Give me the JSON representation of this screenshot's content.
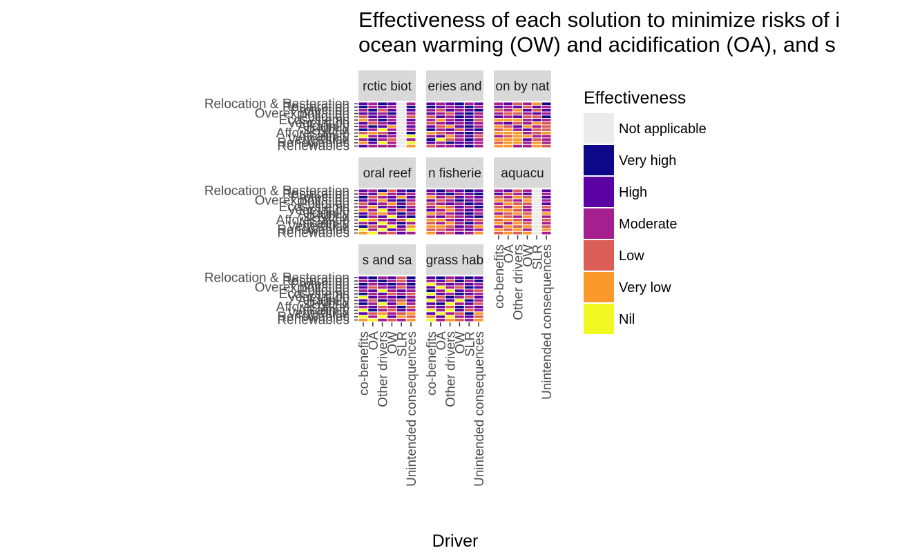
{
  "title": {
    "line1": "Effectiveness of each solution to minimize risks of i",
    "line2": "ocean warming (OW) and acidification (OA), and s"
  },
  "chart_data": {
    "type": "heatmap",
    "xlabel": "Driver",
    "ylabel": "",
    "x_categories": [
      "co-benefits",
      "OA",
      "Other drivers",
      "OW",
      "SLR",
      "Unintended consequences"
    ],
    "y_tick_labels": [
      "Relocation & Restoration",
      "Restoration",
      "Protection",
      "Overexploitation",
      "Pollution",
      "Ecosystems",
      "Vegetation",
      "Alkalinity",
      "Hybrid",
      "Afforestation",
      "Alkalinity",
      "Vegetation",
      "Renewables",
      "Renewables"
    ],
    "facets": [
      {
        "label": "rctic biot"
      },
      {
        "label": "eries and"
      },
      {
        "label": "on by nat"
      },
      {
        "label": "oral reef"
      },
      {
        "label": "n fisherie"
      },
      {
        "label": "aquacu"
      },
      {
        "label": "s and sa"
      },
      {
        "label": "grass hab"
      }
    ],
    "legend": {
      "title": "Effectiveness",
      "position": "right",
      "items": [
        {
          "label": "Not applicable",
          "color": "#EBEBEB"
        },
        {
          "label": "Very high",
          "color": "#0D0887"
        },
        {
          "label": "High",
          "color": "#5B02A3"
        },
        {
          "label": "Moderate",
          "color": "#A51F8F"
        },
        {
          "label": "Low",
          "color": "#DB5D57"
        },
        {
          "label": "Very low",
          "color": "#FB9A2B"
        },
        {
          "label": "Nil",
          "color": "#F0F921"
        }
      ]
    },
    "cell_levels": [
      [
        [
          2,
          3,
          1,
          2,
          0,
          3
        ],
        [
          1,
          3,
          2,
          3,
          0,
          1
        ],
        [
          3,
          1,
          4,
          2,
          0,
          2
        ],
        [
          2,
          2,
          3,
          1,
          0,
          3
        ],
        [
          4,
          2,
          2,
          3,
          0,
          4
        ],
        [
          5,
          3,
          1,
          3,
          0,
          2
        ],
        [
          2,
          4,
          3,
          2,
          0,
          3
        ],
        [
          3,
          1,
          2,
          5,
          0,
          2
        ],
        [
          1,
          3,
          6,
          3,
          0,
          3
        ],
        [
          4,
          5,
          4,
          2,
          0,
          1
        ],
        [
          6,
          3,
          2,
          3,
          0,
          6
        ],
        [
          3,
          1,
          3,
          4,
          0,
          3
        ],
        [
          5,
          2,
          6,
          3,
          0,
          6
        ],
        [
          2,
          3,
          3,
          3,
          0,
          5
        ]
      ],
      [
        [
          2,
          3,
          2,
          1,
          3,
          2
        ],
        [
          1,
          2,
          3,
          2,
          1,
          3
        ],
        [
          3,
          4,
          2,
          3,
          2,
          1
        ],
        [
          2,
          3,
          4,
          2,
          1,
          3
        ],
        [
          4,
          2,
          3,
          1,
          2,
          3
        ],
        [
          3,
          5,
          3,
          2,
          1,
          4
        ],
        [
          4,
          3,
          2,
          3,
          2,
          3
        ],
        [
          2,
          4,
          5,
          2,
          1,
          3
        ],
        [
          1,
          3,
          2,
          4,
          2,
          1
        ],
        [
          5,
          4,
          3,
          2,
          1,
          3
        ],
        [
          3,
          2,
          5,
          3,
          2,
          4
        ],
        [
          1,
          6,
          4,
          3,
          1,
          3
        ],
        [
          2,
          3,
          1,
          2,
          2,
          3
        ],
        [
          4,
          3,
          3,
          2,
          1,
          3
        ]
      ],
      [
        [
          3,
          2,
          4,
          3,
          5,
          1
        ],
        [
          2,
          3,
          2,
          4,
          2,
          3
        ],
        [
          4,
          3,
          5,
          2,
          4,
          2
        ],
        [
          3,
          4,
          4,
          3,
          2,
          3
        ],
        [
          2,
          3,
          2,
          4,
          4,
          1
        ],
        [
          5,
          5,
          5,
          3,
          2,
          3
        ],
        [
          3,
          2,
          4,
          3,
          5,
          4
        ],
        [
          5,
          4,
          2,
          5,
          3,
          4
        ],
        [
          4,
          5,
          3,
          2,
          4,
          4
        ],
        [
          5,
          5,
          5,
          3,
          4,
          5
        ],
        [
          3,
          4,
          5,
          5,
          3,
          3
        ],
        [
          5,
          5,
          5,
          2,
          4,
          3
        ],
        [
          4,
          5,
          5,
          3,
          5,
          3
        ],
        [
          5,
          5,
          3,
          3,
          5,
          4
        ]
      ],
      [
        [
          2,
          3,
          1,
          4,
          2,
          1
        ],
        [
          3,
          2,
          5,
          3,
          2,
          3
        ],
        [
          1,
          4,
          3,
          2,
          5,
          2
        ],
        [
          2,
          3,
          5,
          2,
          1,
          3
        ],
        [
          4,
          2,
          3,
          5,
          2,
          4
        ],
        [
          3,
          5,
          2,
          3,
          1,
          3
        ],
        [
          5,
          3,
          6,
          2,
          4,
          2
        ],
        [
          2,
          4,
          5,
          3,
          1,
          3
        ],
        [
          1,
          3,
          2,
          6,
          2,
          1
        ],
        [
          6,
          5,
          3,
          2,
          4,
          6
        ],
        [
          3,
          2,
          6,
          3,
          1,
          3
        ],
        [
          1,
          4,
          3,
          6,
          2,
          5
        ],
        [
          6,
          3,
          6,
          2,
          3,
          6
        ],
        [
          5,
          6,
          3,
          4,
          2,
          3
        ]
      ],
      [
        [
          2,
          1,
          3,
          2,
          1,
          2
        ],
        [
          3,
          2,
          1,
          3,
          2,
          1
        ],
        [
          5,
          3,
          4,
          2,
          3,
          2
        ],
        [
          2,
          4,
          3,
          1,
          2,
          3
        ],
        [
          4,
          3,
          2,
          3,
          1,
          2
        ],
        [
          3,
          5,
          4,
          2,
          3,
          1
        ],
        [
          2,
          3,
          5,
          3,
          2,
          3
        ],
        [
          5,
          4,
          3,
          2,
          1,
          3
        ],
        [
          3,
          2,
          4,
          3,
          2,
          1
        ],
        [
          5,
          5,
          3,
          2,
          3,
          4
        ],
        [
          4,
          3,
          5,
          3,
          1,
          3
        ],
        [
          5,
          5,
          4,
          2,
          3,
          5
        ],
        [
          4,
          4,
          3,
          3,
          2,
          3
        ],
        [
          5,
          3,
          4,
          2,
          3,
          5
        ]
      ],
      [
        [
          3,
          2,
          4,
          3,
          0,
          2
        ],
        [
          2,
          4,
          3,
          2,
          0,
          3
        ],
        [
          4,
          3,
          5,
          4,
          0,
          2
        ],
        [
          5,
          4,
          3,
          5,
          0,
          3
        ],
        [
          3,
          5,
          4,
          4,
          0,
          2
        ],
        [
          4,
          3,
          5,
          3,
          0,
          4
        ],
        [
          5,
          5,
          4,
          3,
          0,
          3
        ],
        [
          3,
          4,
          5,
          4,
          0,
          5
        ],
        [
          5,
          4,
          3,
          5,
          0,
          3
        ],
        [
          4,
          5,
          4,
          3,
          0,
          4
        ],
        [
          5,
          3,
          5,
          4,
          0,
          3
        ],
        [
          3,
          5,
          4,
          5,
          0,
          4
        ],
        [
          5,
          4,
          5,
          3,
          0,
          5
        ],
        [
          4,
          5,
          4,
          5,
          0,
          3
        ]
      ],
      [
        [
          2,
          1,
          3,
          2,
          4,
          1
        ],
        [
          3,
          2,
          1,
          3,
          4,
          2
        ],
        [
          1,
          3,
          2,
          1,
          3,
          1
        ],
        [
          2,
          4,
          3,
          2,
          4,
          2
        ],
        [
          3,
          2,
          6,
          3,
          2,
          3
        ],
        [
          1,
          3,
          2,
          4,
          3,
          4
        ],
        [
          6,
          2,
          3,
          2,
          1,
          3
        ],
        [
          2,
          4,
          1,
          3,
          4,
          2
        ],
        [
          1,
          3,
          6,
          2,
          5,
          3
        ],
        [
          3,
          2,
          4,
          3,
          1,
          4
        ],
        [
          6,
          1,
          3,
          4,
          2,
          3
        ],
        [
          2,
          4,
          5,
          3,
          4,
          5
        ],
        [
          6,
          3,
          6,
          2,
          5,
          4
        ],
        [
          5,
          6,
          3,
          4,
          3,
          5
        ]
      ],
      [
        [
          2,
          1,
          3,
          2,
          1,
          2
        ],
        [
          3,
          2,
          4,
          1,
          3,
          1
        ],
        [
          6,
          3,
          2,
          3,
          2,
          3
        ],
        [
          2,
          6,
          3,
          4,
          1,
          2
        ],
        [
          1,
          3,
          6,
          2,
          3,
          4
        ],
        [
          6,
          2,
          3,
          1,
          2,
          3
        ],
        [
          2,
          4,
          1,
          3,
          4,
          2
        ],
        [
          6,
          3,
          2,
          6,
          1,
          3
        ],
        [
          2,
          1,
          6,
          3,
          2,
          4
        ],
        [
          3,
          2,
          4,
          1,
          3,
          2
        ],
        [
          6,
          3,
          6,
          2,
          4,
          3
        ],
        [
          2,
          6,
          3,
          4,
          1,
          5
        ],
        [
          5,
          2,
          6,
          3,
          2,
          4
        ],
        [
          6,
          3,
          5,
          4,
          3,
          5
        ]
      ]
    ]
  }
}
